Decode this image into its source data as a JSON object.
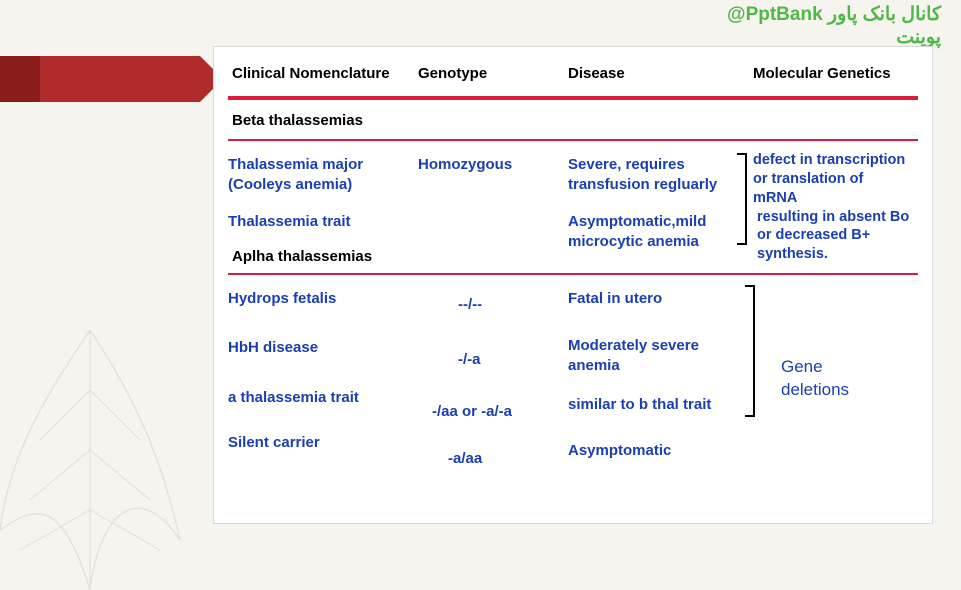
{
  "watermark": {
    "line1": "کانال بانک پاور",
    "handle": "@PptBank",
    "line2": "پوینت"
  },
  "headers": {
    "c1": "Clinical Nomenclature",
    "c2": "Genotype",
    "c3": "Disease",
    "c4": "Molecular Genetics"
  },
  "beta": {
    "section": "Beta thalassemias",
    "r1": {
      "name1": "Thalassemia major",
      "name2": "(Cooleys anemia)",
      "geno": "Homozygous",
      "dis1": "Severe, requires",
      "dis2": "transfusion regluarly"
    },
    "r2": {
      "name": "Thalassemia trait",
      "dis1": "Asymptomatic,mild",
      "dis2": "microcytic anemia"
    },
    "mg1": "defect in transcription",
    "mg2": "or translation of",
    "mg3": "mRNA",
    "mg4": "resulting in absent Bo",
    "mg5": "or decreased B+",
    "mg6": "synthesis."
  },
  "alpha": {
    "section": "Aplha thalassemias",
    "r1": {
      "name": "Hydrops fetalis",
      "geno": "--/--",
      "dis": "Fatal in utero"
    },
    "r2": {
      "name": "HbH disease",
      "geno": "-/-a",
      "dis1": "Moderately severe",
      "dis2": "anemia"
    },
    "r3": {
      "name": "a thalassemia trait",
      "geno": "-/aa or -a/-a",
      "dis": "similar to b thal trait"
    },
    "r4": {
      "name": "Silent carrier",
      "geno": "-a/aa",
      "dis": "Asymptomatic"
    },
    "mg": "Gene deletions"
  },
  "colors": {
    "accent_red": "#d81e3a",
    "text_blue": "#1a3fb0",
    "watermark_green": "#51b749",
    "ribbon_dark": "#8a1c1c",
    "ribbon_light": "#b02c2c",
    "panel_bg": "#ffffff",
    "page_bg": "#f5f4ef"
  }
}
